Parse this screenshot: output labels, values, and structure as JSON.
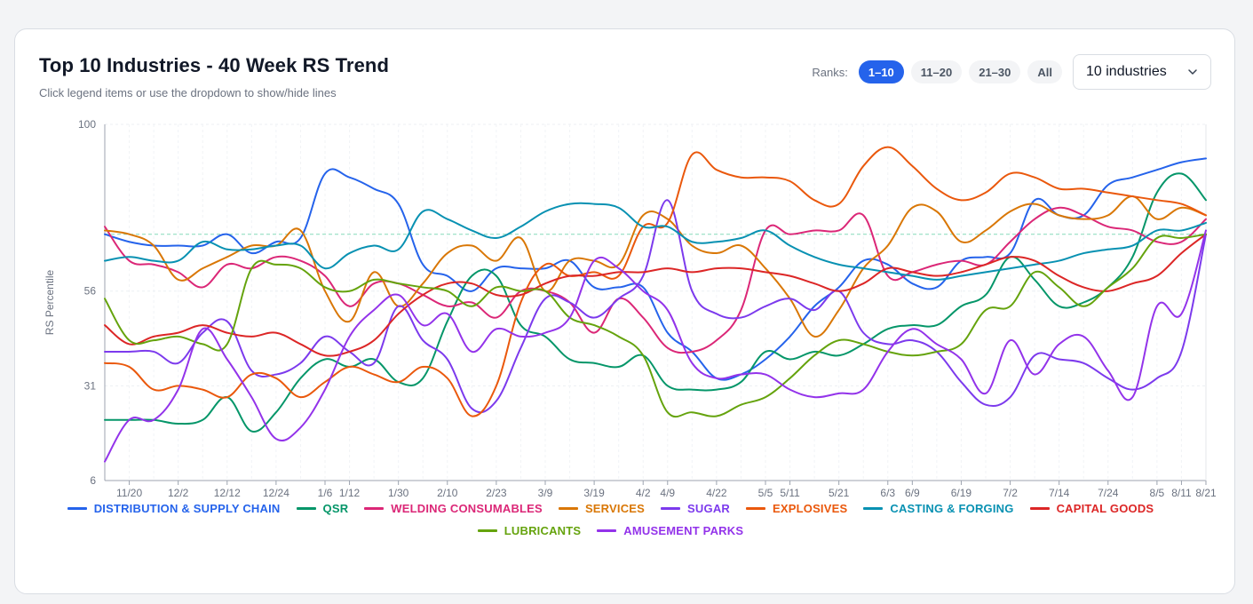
{
  "header": {
    "title": "Top 10 Industries - 40 Week RS Trend",
    "subtitle": "Click legend items or use the dropdown to show/hide lines"
  },
  "controls": {
    "ranks_label": "Ranks:",
    "rank_options": [
      "1–10",
      "11–20",
      "21–30",
      "All"
    ],
    "active_rank": 0,
    "dropdown_value": "10 industries",
    "dropdown_icon": "chevron-down-icon"
  },
  "chart_data": {
    "type": "line",
    "title": "Top 10 Industries - 40 Week RS Trend",
    "ylabel": "RS Percentile",
    "xlabel": "",
    "ylim": [
      6,
      100
    ],
    "yticks": [
      "100",
      "56",
      "31",
      "6"
    ],
    "reference_line": 71,
    "grid": true,
    "legend_position": "bottom",
    "x": [
      "11/14",
      "11/20",
      "11/26",
      "12/2",
      "12/8",
      "12/12",
      "12/18",
      "12/24",
      "12/30",
      "1/6",
      "1/12",
      "1/20",
      "1/30",
      "2/4",
      "2/10",
      "2/16",
      "2/23",
      "3/2",
      "3/9",
      "3/14",
      "3/19",
      "3/26",
      "4/2",
      "4/9",
      "4/16",
      "4/22",
      "4/28",
      "5/5",
      "5/11",
      "5/16",
      "5/21",
      "5/27",
      "6/3",
      "6/9",
      "6/13",
      "6/19",
      "6/26",
      "7/2",
      "7/8",
      "7/14",
      "7/19",
      "7/24",
      "7/30",
      "8/5",
      "8/11",
      "8/21"
    ],
    "tick_labels": [
      "11/20",
      "12/2",
      "12/12",
      "12/24",
      "1/6",
      "1/12",
      "1/30",
      "2/10",
      "2/23",
      "3/9",
      "3/19",
      "4/2",
      "4/9",
      "4/22",
      "5/5",
      "5/11",
      "5/21",
      "6/3",
      "6/9",
      "6/19",
      "7/2",
      "7/14",
      "7/24",
      "8/5",
      "8/11",
      "8/21"
    ],
    "series": [
      {
        "name": "DISTRIBUTION & SUPPLY CHAIN",
        "color": "#2563eb",
        "values": [
          71,
          69,
          68,
          68,
          68,
          71,
          66,
          69,
          70,
          87,
          86,
          83,
          79,
          63,
          60,
          56,
          62,
          62,
          62,
          64,
          57,
          57,
          57,
          45,
          40,
          33,
          34,
          38,
          44,
          52,
          57,
          64,
          63,
          58,
          57,
          64,
          65,
          66,
          80,
          76,
          76,
          84,
          86,
          88,
          90,
          91
        ]
      },
      {
        "name": "QSR",
        "color": "#059669",
        "values": [
          22,
          22,
          22,
          21,
          22,
          28,
          19,
          24,
          33,
          38,
          36,
          38,
          32,
          33,
          48,
          60,
          60,
          47,
          44,
          38,
          37,
          36,
          39,
          31,
          30,
          30,
          32,
          40,
          38,
          40,
          39,
          42,
          46,
          47,
          47,
          52,
          55,
          65,
          59,
          52,
          53,
          57,
          65,
          82,
          87,
          80
        ]
      },
      {
        "name": "WELDING CONSUMABLES",
        "color": "#db2777",
        "values": [
          73,
          64,
          63,
          61,
          57,
          63,
          62,
          65,
          64,
          60,
          52,
          58,
          58,
          55,
          52,
          53,
          49,
          56,
          56,
          53,
          45,
          54,
          49,
          41,
          40,
          43,
          51,
          72,
          71,
          72,
          72,
          76,
          60,
          61,
          63,
          64,
          63,
          69,
          75,
          78,
          76,
          73,
          72,
          69,
          69,
          75
        ]
      },
      {
        "name": "SERVICES",
        "color": "#d97706",
        "values": [
          72,
          71,
          68,
          59,
          62,
          65,
          68,
          68,
          72,
          56,
          48,
          61,
          52,
          58,
          66,
          68,
          64,
          70,
          56,
          64,
          64,
          63,
          76,
          75,
          68,
          66,
          68,
          62,
          54,
          44,
          51,
          62,
          68,
          78,
          77,
          69,
          72,
          77,
          79,
          76,
          75,
          76,
          81,
          75,
          78,
          76
        ]
      },
      {
        "name": "SUGAR",
        "color": "#7c3aed",
        "values": [
          40,
          40,
          40,
          37,
          45,
          48,
          35,
          34,
          37,
          44,
          40,
          37,
          52,
          43,
          38,
          25,
          27,
          41,
          54,
          53,
          49,
          54,
          60,
          80,
          56,
          50,
          49,
          52,
          54,
          51,
          56,
          45,
          42,
          43,
          40,
          32,
          26,
          28,
          39,
          38,
          37,
          33,
          30,
          33,
          40,
          71
        ]
      },
      {
        "name": "EXPLOSIVES",
        "color": "#ea580c",
        "values": [
          37,
          36,
          30,
          31,
          30,
          28,
          34,
          33,
          28,
          32,
          36,
          34,
          32,
          36,
          33,
          23,
          31,
          53,
          63,
          60,
          61,
          60,
          73,
          74,
          92,
          88,
          86,
          86,
          85,
          80,
          79,
          89,
          94,
          89,
          83,
          80,
          82,
          87,
          86,
          83,
          83,
          82,
          81,
          80,
          79,
          76
        ]
      },
      {
        "name": "CASTING & FORGING",
        "color": "#0891b2",
        "values": [
          64,
          65,
          64,
          64,
          69,
          67,
          67,
          68,
          68,
          62,
          66,
          68,
          67,
          77,
          75,
          72,
          70,
          73,
          77,
          79,
          79,
          78,
          73,
          73,
          69,
          69,
          70,
          72,
          68,
          65,
          63,
          62,
          61,
          60,
          59,
          60,
          61,
          62,
          63,
          64,
          66,
          67,
          68,
          72,
          72,
          74
        ]
      },
      {
        "name": "CAPITAL GOODS",
        "color": "#dc2626",
        "values": [
          47,
          42,
          44,
          45,
          47,
          45,
          44,
          45,
          42,
          39,
          40,
          43,
          50,
          55,
          58,
          58,
          55,
          55,
          58,
          60,
          60,
          61,
          61,
          62,
          61,
          62,
          62,
          61,
          60,
          58,
          56,
          58,
          62,
          61,
          60,
          61,
          63,
          65,
          64,
          60,
          57,
          56,
          58,
          60,
          66,
          71
        ]
      },
      {
        "name": "LUBRICANTS",
        "color": "#65a30d",
        "values": [
          54,
          43,
          43,
          44,
          42,
          42,
          62,
          63,
          62,
          57,
          56,
          59,
          58,
          57,
          56,
          52,
          57,
          56,
          56,
          49,
          47,
          44,
          39,
          24,
          24,
          23,
          26,
          28,
          33,
          39,
          43,
          42,
          40,
          39,
          40,
          42,
          51,
          52,
          61,
          57,
          52,
          57,
          62,
          70,
          70,
          71
        ]
      },
      {
        "name": "AMUSEMENT PARKS",
        "color": "#9333ea",
        "values": [
          11,
          22,
          22,
          30,
          46,
          38,
          28,
          17,
          20,
          30,
          44,
          51,
          55,
          47,
          50,
          40,
          46,
          44,
          45,
          49,
          64,
          62,
          56,
          51,
          37,
          33,
          34,
          34,
          30,
          28,
          29,
          30,
          40,
          46,
          42,
          38,
          29,
          43,
          34,
          42,
          44,
          35,
          28,
          52,
          50,
          72
        ]
      }
    ]
  }
}
